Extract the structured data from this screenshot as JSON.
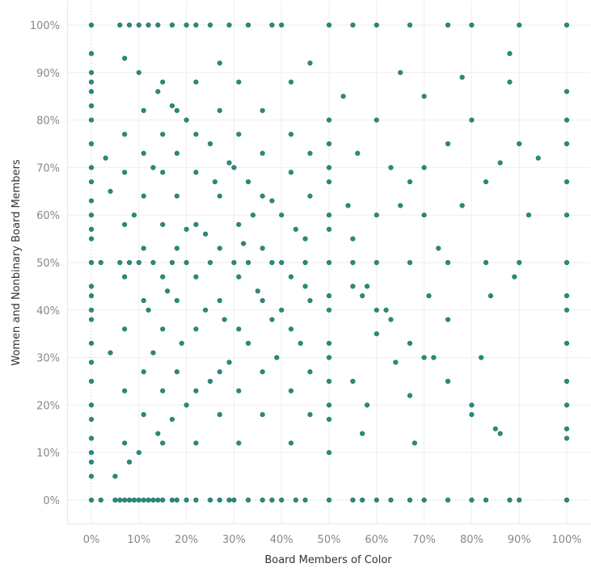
{
  "chart_data": {
    "type": "scatter",
    "xlabel": "Board Members of Color",
    "ylabel": "Women and Nonbinary Board Members",
    "xlim": [
      -5,
      105
    ],
    "ylim": [
      -5,
      105
    ],
    "x_ticks": [
      "0%",
      "10%",
      "20%",
      "30%",
      "40%",
      "50%",
      "60%",
      "70%",
      "80%",
      "90%",
      "100%"
    ],
    "y_ticks": [
      "0%",
      "10%",
      "20%",
      "30%",
      "40%",
      "50%",
      "60%",
      "70%",
      "80%",
      "90%",
      "100%"
    ],
    "grid": true,
    "color": "#2b8a7a",
    "points": [
      [
        0,
        0
      ],
      [
        2,
        0
      ],
      [
        5,
        0
      ],
      [
        6,
        0
      ],
      [
        7,
        0
      ],
      [
        8,
        0
      ],
      [
        9,
        0
      ],
      [
        10,
        0
      ],
      [
        11,
        0
      ],
      [
        12,
        0
      ],
      [
        13,
        0
      ],
      [
        14,
        0
      ],
      [
        15,
        0
      ],
      [
        17,
        0
      ],
      [
        18,
        0
      ],
      [
        20,
        0
      ],
      [
        22,
        0
      ],
      [
        25,
        0
      ],
      [
        27,
        0
      ],
      [
        29,
        0
      ],
      [
        30,
        0
      ],
      [
        33,
        0
      ],
      [
        36,
        0
      ],
      [
        38,
        0
      ],
      [
        40,
        0
      ],
      [
        43,
        0
      ],
      [
        45,
        0
      ],
      [
        50,
        0
      ],
      [
        55,
        0
      ],
      [
        57,
        0
      ],
      [
        60,
        0
      ],
      [
        63,
        0
      ],
      [
        67,
        0
      ],
      [
        70,
        0
      ],
      [
        75,
        0
      ],
      [
        80,
        0
      ],
      [
        83,
        0
      ],
      [
        88,
        0
      ],
      [
        90,
        0
      ],
      [
        100,
        0
      ],
      [
        6,
        100
      ],
      [
        8,
        100
      ],
      [
        10,
        100
      ],
      [
        12,
        100
      ],
      [
        14,
        100
      ],
      [
        17,
        100
      ],
      [
        20,
        100
      ],
      [
        22,
        100
      ],
      [
        25,
        100
      ],
      [
        29,
        100
      ],
      [
        33,
        100
      ],
      [
        38,
        100
      ],
      [
        40,
        100
      ],
      [
        50,
        100
      ],
      [
        55,
        100
      ],
      [
        60,
        100
      ],
      [
        67,
        100
      ],
      [
        75,
        100
      ],
      [
        80,
        100
      ],
      [
        90,
        100
      ],
      [
        100,
        100
      ],
      [
        0,
        100
      ],
      [
        0,
        5
      ],
      [
        0,
        8
      ],
      [
        0,
        10
      ],
      [
        0,
        13
      ],
      [
        0,
        17
      ],
      [
        0,
        20
      ],
      [
        0,
        25
      ],
      [
        0,
        29
      ],
      [
        0,
        33
      ],
      [
        0,
        38
      ],
      [
        0,
        40
      ],
      [
        0,
        43
      ],
      [
        0,
        45
      ],
      [
        0,
        50
      ],
      [
        0,
        55
      ],
      [
        0,
        57
      ],
      [
        0,
        60
      ],
      [
        0,
        63
      ],
      [
        0,
        67
      ],
      [
        0,
        70
      ],
      [
        0,
        75
      ],
      [
        0,
        80
      ],
      [
        0,
        83
      ],
      [
        0,
        86
      ],
      [
        0,
        88
      ],
      [
        0,
        90
      ],
      [
        0,
        94
      ],
      [
        100,
        13
      ],
      [
        100,
        15
      ],
      [
        100,
        20
      ],
      [
        100,
        25
      ],
      [
        100,
        33
      ],
      [
        100,
        40
      ],
      [
        100,
        43
      ],
      [
        100,
        50
      ],
      [
        100,
        60
      ],
      [
        100,
        67
      ],
      [
        100,
        75
      ],
      [
        100,
        80
      ],
      [
        100,
        86
      ],
      [
        50,
        10
      ],
      [
        50,
        17
      ],
      [
        50,
        20
      ],
      [
        50,
        25
      ],
      [
        50,
        30
      ],
      [
        50,
        33
      ],
      [
        50,
        40
      ],
      [
        50,
        43
      ],
      [
        50,
        50
      ],
      [
        50,
        57
      ],
      [
        50,
        60
      ],
      [
        50,
        67
      ],
      [
        50,
        70
      ],
      [
        50,
        75
      ],
      [
        50,
        80
      ],
      [
        7,
        93
      ],
      [
        10,
        90
      ],
      [
        14,
        86
      ],
      [
        17,
        83
      ],
      [
        20,
        80
      ],
      [
        25,
        75
      ],
      [
        29,
        71
      ],
      [
        30,
        70
      ],
      [
        33,
        67
      ],
      [
        36,
        64
      ],
      [
        38,
        63
      ],
      [
        40,
        60
      ],
      [
        43,
        57
      ],
      [
        45,
        55
      ],
      [
        55,
        45
      ],
      [
        57,
        43
      ],
      [
        60,
        40
      ],
      [
        63,
        38
      ],
      [
        67,
        33
      ],
      [
        70,
        30
      ],
      [
        75,
        25
      ],
      [
        80,
        20
      ],
      [
        86,
        14
      ],
      [
        5,
        5
      ],
      [
        8,
        8
      ],
      [
        10,
        10
      ],
      [
        14,
        14
      ],
      [
        17,
        17
      ],
      [
        20,
        20
      ],
      [
        25,
        25
      ],
      [
        29,
        29
      ],
      [
        33,
        33
      ],
      [
        38,
        38
      ],
      [
        40,
        40
      ],
      [
        45,
        45
      ],
      [
        55,
        55
      ],
      [
        60,
        60
      ],
      [
        67,
        67
      ],
      [
        70,
        70
      ],
      [
        75,
        75
      ],
      [
        80,
        80
      ],
      [
        88,
        88
      ],
      [
        2,
        50
      ],
      [
        6,
        50
      ],
      [
        8,
        50
      ],
      [
        10,
        50
      ],
      [
        13,
        50
      ],
      [
        17,
        50
      ],
      [
        20,
        50
      ],
      [
        25,
        50
      ],
      [
        30,
        50
      ],
      [
        33,
        50
      ],
      [
        38,
        50
      ],
      [
        40,
        50
      ],
      [
        45,
        50
      ],
      [
        55,
        50
      ],
      [
        60,
        50
      ],
      [
        67,
        50
      ],
      [
        75,
        50
      ],
      [
        83,
        50
      ],
      [
        90,
        50
      ],
      [
        7,
        12
      ],
      [
        7,
        23
      ],
      [
        7,
        36
      ],
      [
        7,
        47
      ],
      [
        7,
        58
      ],
      [
        7,
        69
      ],
      [
        7,
        77
      ],
      [
        11,
        18
      ],
      [
        11,
        27
      ],
      [
        11,
        42
      ],
      [
        11,
        53
      ],
      [
        11,
        64
      ],
      [
        11,
        73
      ],
      [
        11,
        82
      ],
      [
        15,
        12
      ],
      [
        15,
        23
      ],
      [
        15,
        36
      ],
      [
        15,
        47
      ],
      [
        15,
        58
      ],
      [
        15,
        69
      ],
      [
        15,
        77
      ],
      [
        15,
        88
      ],
      [
        18,
        27
      ],
      [
        18,
        42
      ],
      [
        18,
        53
      ],
      [
        18,
        64
      ],
      [
        18,
        73
      ],
      [
        18,
        82
      ],
      [
        22,
        12
      ],
      [
        22,
        23
      ],
      [
        22,
        36
      ],
      [
        22,
        47
      ],
      [
        22,
        58
      ],
      [
        22,
        69
      ],
      [
        22,
        77
      ],
      [
        22,
        88
      ],
      [
        27,
        18
      ],
      [
        27,
        27
      ],
      [
        27,
        42
      ],
      [
        27,
        53
      ],
      [
        27,
        64
      ],
      [
        27,
        82
      ],
      [
        27,
        92
      ],
      [
        31,
        12
      ],
      [
        31,
        23
      ],
      [
        31,
        36
      ],
      [
        31,
        47
      ],
      [
        31,
        58
      ],
      [
        31,
        77
      ],
      [
        31,
        88
      ],
      [
        36,
        18
      ],
      [
        36,
        27
      ],
      [
        36,
        42
      ],
      [
        36,
        53
      ],
      [
        36,
        73
      ],
      [
        36,
        82
      ],
      [
        42,
        12
      ],
      [
        42,
        23
      ],
      [
        42,
        36
      ],
      [
        42,
        47
      ],
      [
        42,
        69
      ],
      [
        42,
        77
      ],
      [
        42,
        88
      ],
      [
        46,
        18
      ],
      [
        46,
        27
      ],
      [
        46,
        42
      ],
      [
        46,
        64
      ],
      [
        46,
        73
      ],
      [
        46,
        92
      ],
      [
        4,
        31
      ],
      [
        4,
        65
      ],
      [
        13,
        31
      ],
      [
        13,
        70
      ],
      [
        19,
        33
      ],
      [
        24,
        40
      ],
      [
        24,
        56
      ],
      [
        34,
        60
      ],
      [
        35,
        44
      ],
      [
        39,
        30
      ],
      [
        44,
        33
      ],
      [
        12,
        40
      ],
      [
        16,
        44
      ],
      [
        20,
        57
      ],
      [
        28,
        38
      ],
      [
        32,
        54
      ],
      [
        26,
        67
      ],
      [
        9,
        60
      ],
      [
        3,
        72
      ],
      [
        55,
        25
      ],
      [
        57,
        14
      ],
      [
        60,
        35
      ],
      [
        62,
        40
      ],
      [
        64,
        29
      ],
      [
        65,
        62
      ],
      [
        67,
        22
      ],
      [
        71,
        43
      ],
      [
        73,
        53
      ],
      [
        75,
        38
      ],
      [
        78,
        62
      ],
      [
        80,
        18
      ],
      [
        82,
        30
      ],
      [
        83,
        67
      ],
      [
        86,
        71
      ],
      [
        89,
        47
      ],
      [
        92,
        60
      ],
      [
        94,
        72
      ],
      [
        60,
        80
      ],
      [
        70,
        85
      ],
      [
        78,
        89
      ],
      [
        88,
        94
      ],
      [
        65,
        90
      ],
      [
        56,
        73
      ],
      [
        58,
        45
      ],
      [
        68,
        12
      ],
      [
        85,
        15
      ],
      [
        84,
        43
      ],
      [
        90,
        75
      ],
      [
        72,
        30
      ],
      [
        63,
        70
      ],
      [
        53,
        85
      ],
      [
        54,
        62
      ],
      [
        58,
        20
      ],
      [
        70,
        60
      ]
    ]
  }
}
